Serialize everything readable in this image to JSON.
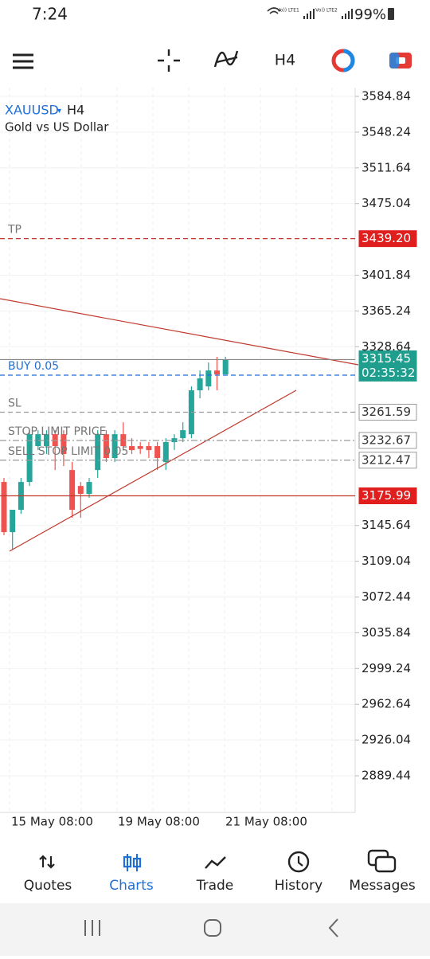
{
  "status_bar": {
    "time": "7:24",
    "sim1": "Vo)) LTE1",
    "sim2": "Vo)) LTE2",
    "battery": "99%"
  },
  "toolbar": {
    "timeframe": "H4"
  },
  "chart": {
    "symbol": "XAUUSD",
    "timeframe": "H4",
    "description": "Gold vs US Dollar",
    "bull_color": "#26a69a",
    "bear_color": "#ef5350",
    "price_ticks": [
      3584.84,
      3548.24,
      3511.64,
      3475.04,
      3401.84,
      3365.24,
      3328.64,
      3145.64,
      3109.04,
      3072.44,
      3035.84,
      2999.24,
      2962.64,
      2926.04,
      2889.44
    ],
    "time_labels": [
      "15 May 08:00",
      "19 May 08:00",
      "21 May 08:00"
    ],
    "levels": [
      {
        "label": "TP",
        "price": {
          "value": 3439.2,
          "label": "3439.20"
        },
        "color": "#c0392b",
        "dash": "6 4",
        "tag_style": "red"
      },
      {
        "price": 3315.45,
        "countdown": "02:35:32",
        "color": "#888888",
        "dash": "none",
        "tag_style": "teal"
      },
      {
        "label": "BUY 0.05",
        "price": 3299.5,
        "color": "#1e6fd9",
        "dash": "6 4"
      },
      {
        "label": "SL",
        "price": 3261.59,
        "color": "#9a9a9a",
        "dash": "6 4",
        "tag_style": "plain"
      },
      {
        "label": "STOP LIMIT PRICE",
        "price": 3232.67,
        "color": "#9a9a9a",
        "dash": "8 3 2 3",
        "tag_style": "plain"
      },
      {
        "label": "SELL STOP LIMIT 0.05",
        "price": 3212.47,
        "color": "#9a9a9a",
        "dash": "8 3 2 3",
        "tag_style": "plain"
      },
      {
        "price": 3175.99,
        "color": "#c0392b",
        "dash": "none",
        "tag_style": "red"
      }
    ],
    "candles": [
      {
        "open": 3190.2,
        "high": 3194.3,
        "low": 3135.6,
        "close": 3138.8
      },
      {
        "open": 3138.8,
        "high": 3161.7,
        "low": 3120.9,
        "close": 3161.7
      },
      {
        "open": 3161.7,
        "high": 3194.3,
        "low": 3157.6,
        "close": 3190.2
      },
      {
        "open": 3190.2,
        "high": 3243.2,
        "low": 3186.1,
        "close": 3239.1
      },
      {
        "open": 3226.9,
        "high": 3243.2,
        "low": 3222.8,
        "close": 3239.1
      },
      {
        "open": 3226.9,
        "high": 3243.2,
        "low": 3218.8,
        "close": 3239.1
      },
      {
        "open": 3239.1,
        "high": 3243.2,
        "low": 3202.4,
        "close": 3226.9
      },
      {
        "open": 3239.1,
        "high": 3243.2,
        "low": 3206.5,
        "close": 3218.8
      },
      {
        "open": 3202.4,
        "high": 3210.6,
        "low": 3153.5,
        "close": 3161.7
      },
      {
        "open": 3186.1,
        "high": 3190.2,
        "low": 3153.5,
        "close": 3178.0
      },
      {
        "open": 3178.0,
        "high": 3194.3,
        "low": 3174.0,
        "close": 3190.2
      },
      {
        "open": 3202.4,
        "high": 3243.2,
        "low": 3194.3,
        "close": 3239.1
      },
      {
        "open": 3239.1,
        "high": 3243.2,
        "low": 3210.6,
        "close": 3214.7
      },
      {
        "open": 3214.7,
        "high": 3243.2,
        "low": 3210.6,
        "close": 3239.1
      },
      {
        "open": 3239.1,
        "high": 3251.3,
        "low": 3222.8,
        "close": 3226.9
      },
      {
        "open": 3226.9,
        "high": 3235.0,
        "low": 3218.8,
        "close": 3222.8
      },
      {
        "open": 3226.9,
        "high": 3231.0,
        "low": 3218.8,
        "close": 3224.0
      },
      {
        "open": 3226.9,
        "high": 3231.0,
        "low": 3214.7,
        "close": 3222.8
      },
      {
        "open": 3226.9,
        "high": 3231.0,
        "low": 3202.4,
        "close": 3214.7
      },
      {
        "open": 3210.6,
        "high": 3235.0,
        "low": 3202.4,
        "close": 3231.0
      },
      {
        "open": 3231.0,
        "high": 3239.1,
        "low": 3222.8,
        "close": 3235.0
      },
      {
        "open": 3235.0,
        "high": 3251.3,
        "low": 3231.0,
        "close": 3243.2
      },
      {
        "open": 3239.1,
        "high": 3288.0,
        "low": 3235.0,
        "close": 3284.0
      },
      {
        "open": 3284.0,
        "high": 3304.3,
        "low": 3275.8,
        "close": 3296.2
      },
      {
        "open": 3288.0,
        "high": 3312.5,
        "low": 3284.0,
        "close": 3304.3
      },
      {
        "open": 3304.3,
        "high": 3318.2,
        "low": 3284.0,
        "close": 3300.3
      },
      {
        "open": 3300.3,
        "high": 3318.2,
        "low": 3300.3,
        "close": 3315.45
      }
    ]
  },
  "bottom_nav": {
    "items": [
      {
        "label": "Quotes",
        "active": false
      },
      {
        "label": "Charts",
        "active": true
      },
      {
        "label": "Trade",
        "active": false
      },
      {
        "label": "History",
        "active": false
      },
      {
        "label": "Messages",
        "active": false
      }
    ]
  }
}
